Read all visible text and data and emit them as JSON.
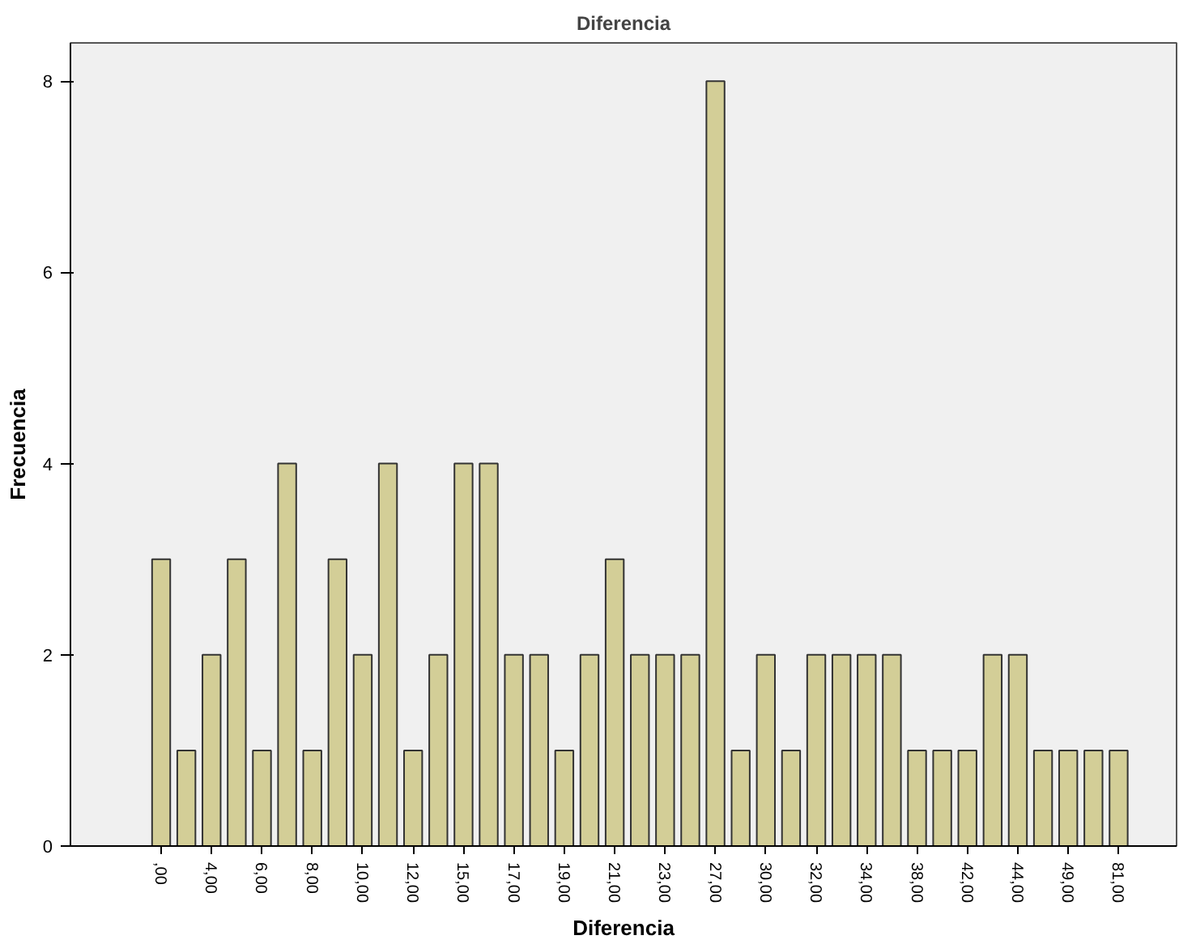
{
  "chart_data": {
    "type": "bar",
    "title": "Diferencia",
    "xlabel": "Diferencia",
    "ylabel": "Frecuencia",
    "categories": [
      ",00",
      null,
      "4,00",
      null,
      "6,00",
      null,
      "8,00",
      null,
      "10,00",
      null,
      "12,00",
      null,
      "15,00",
      null,
      "17,00",
      null,
      "19,00",
      null,
      "21,00",
      null,
      "23,00",
      null,
      "27,00",
      null,
      "30,00",
      null,
      "32,00",
      null,
      "34,00",
      null,
      "38,00",
      null,
      "42,00",
      null,
      "44,00",
      null,
      "49,00",
      null,
      "81,00"
    ],
    "values": [
      3,
      1,
      2,
      3,
      1,
      4,
      1,
      3,
      2,
      4,
      1,
      2,
      4,
      4,
      2,
      2,
      1,
      2,
      3,
      2,
      2,
      2,
      8,
      1,
      2,
      1,
      2,
      2,
      2,
      2,
      1,
      1,
      1,
      2,
      2,
      1,
      1,
      1,
      1
    ],
    "color": "#d3ce97",
    "ylim": [
      0,
      8.4
    ],
    "yticks": [
      0,
      2,
      4,
      6,
      8
    ],
    "grid": false
  }
}
